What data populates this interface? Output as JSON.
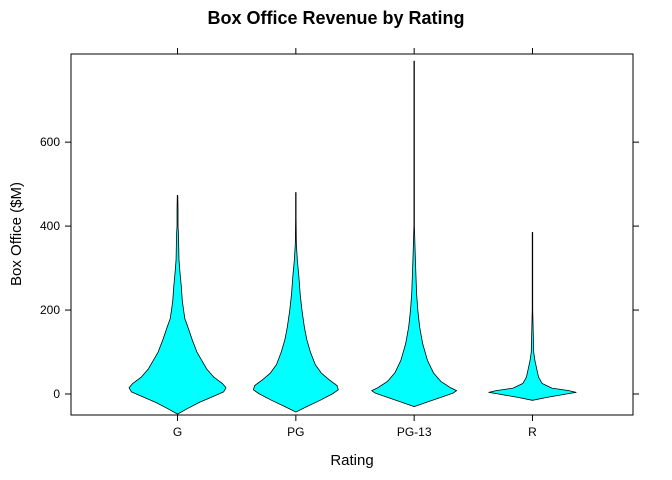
{
  "chart_data": {
    "type": "violin",
    "title": "Box Office Revenue by Rating",
    "xlabel": "Rating",
    "ylabel": "Box Office ($M)",
    "ylim": [
      -50,
      810
    ],
    "yticks": [
      0,
      200,
      400,
      600
    ],
    "categories": [
      "G",
      "PG",
      "PG-13",
      "R"
    ],
    "fill_color": "#00FFFF",
    "outline_color": "#000000",
    "grid": false,
    "violins": [
      {
        "category": "G",
        "min": -48,
        "max": 473,
        "profile": [
          [
            -48,
            0
          ],
          [
            -35,
            0.08
          ],
          [
            -20,
            0.18
          ],
          [
            -5,
            0.3
          ],
          [
            5,
            0.38
          ],
          [
            15,
            0.4
          ],
          [
            25,
            0.37
          ],
          [
            40,
            0.3
          ],
          [
            60,
            0.24
          ],
          [
            80,
            0.2
          ],
          [
            100,
            0.16
          ],
          [
            130,
            0.12
          ],
          [
            160,
            0.085
          ],
          [
            180,
            0.06
          ],
          [
            220,
            0.04
          ],
          [
            260,
            0.03
          ],
          [
            290,
            0.02
          ],
          [
            320,
            0.012
          ],
          [
            380,
            0.008
          ],
          [
            400,
            0.004
          ],
          [
            440,
            0.004
          ],
          [
            473,
            0.002
          ]
        ]
      },
      {
        "category": "PG",
        "min": -43,
        "max": 480,
        "profile": [
          [
            -43,
            0
          ],
          [
            -30,
            0.09
          ],
          [
            -15,
            0.2
          ],
          [
            0,
            0.3
          ],
          [
            10,
            0.35
          ],
          [
            20,
            0.34
          ],
          [
            35,
            0.27
          ],
          [
            50,
            0.21
          ],
          [
            70,
            0.16
          ],
          [
            100,
            0.12
          ],
          [
            130,
            0.09
          ],
          [
            160,
            0.07
          ],
          [
            200,
            0.05
          ],
          [
            240,
            0.035
          ],
          [
            280,
            0.025
          ],
          [
            320,
            0.012
          ],
          [
            360,
            0.004
          ],
          [
            420,
            0.002
          ],
          [
            480,
            0.002
          ]
        ]
      },
      {
        "category": "PG-13",
        "min": -30,
        "max": 793,
        "profile": [
          [
            -30,
            0
          ],
          [
            -20,
            0.1
          ],
          [
            -8,
            0.22
          ],
          [
            2,
            0.32
          ],
          [
            8,
            0.35
          ],
          [
            15,
            0.3
          ],
          [
            30,
            0.22
          ],
          [
            50,
            0.16
          ],
          [
            80,
            0.11
          ],
          [
            120,
            0.07
          ],
          [
            160,
            0.045
          ],
          [
            200,
            0.03
          ],
          [
            240,
            0.02
          ],
          [
            280,
            0.015
          ],
          [
            320,
            0.01
          ],
          [
            340,
            0.008
          ],
          [
            400,
            0.002
          ],
          [
            600,
            0.002
          ],
          [
            793,
            0.002
          ]
        ]
      },
      {
        "category": "R",
        "min": -15,
        "max": 385,
        "profile": [
          [
            -15,
            0
          ],
          [
            -8,
            0.12
          ],
          [
            0,
            0.28
          ],
          [
            4,
            0.36
          ],
          [
            8,
            0.3
          ],
          [
            14,
            0.16
          ],
          [
            25,
            0.08
          ],
          [
            40,
            0.05
          ],
          [
            60,
            0.035
          ],
          [
            80,
            0.02
          ],
          [
            100,
            0.01
          ],
          [
            150,
            0.006
          ],
          [
            200,
            0.002
          ],
          [
            385,
            0.002
          ]
        ]
      }
    ]
  }
}
